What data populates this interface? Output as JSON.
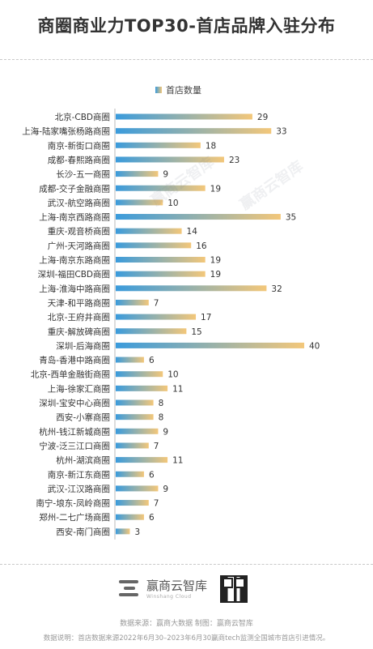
{
  "title": "商圈商业力TOP30-首店品牌入驻分布",
  "chart_data": {
    "type": "bar",
    "orientation": "horizontal",
    "series": [
      {
        "name": "首店数量"
      }
    ],
    "categories": [
      "北京-CBD商圈",
      "上海-陆家嘴张杨路商圈",
      "南京-新街口商圈",
      "成都-春熙路商圈",
      "长沙-五一商圈",
      "成都-交子金融商圈",
      "武汉-航空路商圈",
      "上海-南京西路商圈",
      "重庆-观音桥商圈",
      "广州-天河路商圈",
      "上海-南京东路商圈",
      "深圳-福田CBD商圈",
      "上海-淮海中路商圈",
      "天津-和平路商圈",
      "北京-王府井商圈",
      "重庆-解放碑商圈",
      "深圳-后海商圈",
      "青岛-香港中路商圈",
      "北京-西单金融街商圈",
      "上海-徐家汇商圈",
      "深圳-宝安中心商圈",
      "西安-小寨商圈",
      "杭州-钱江新城商圈",
      "宁波-泛三江口商圈",
      "杭州-湖滨商圈",
      "南京-新江东商圈",
      "武汉-江汉路商圈",
      "南宁-埌东-凤岭商圈",
      "郑州-二七广场商圈",
      "西安-南门商圈"
    ],
    "values": [
      29,
      33,
      18,
      23,
      9,
      19,
      10,
      35,
      14,
      16,
      19,
      19,
      32,
      7,
      17,
      15,
      40,
      6,
      10,
      11,
      8,
      8,
      9,
      7,
      11,
      6,
      9,
      7,
      6,
      3
    ],
    "xlim": [
      0,
      40
    ],
    "legend_position": "top-center",
    "grid": false,
    "colors": {
      "bar_start": "#3a9bdc",
      "bar_end": "#f3c77a",
      "axis": "#bbbbbb"
    }
  },
  "watermark": "赢商云智库",
  "footer": {
    "logo_name": "赢商云智库",
    "logo_sub": "Winshang Cloud",
    "source": "数据来源：赢商大数据   制图：赢商云智库",
    "note": "数据说明：首店数据来源2022年6月30–2023年6月30赢商tech监测全国城市首店引进情况。"
  }
}
